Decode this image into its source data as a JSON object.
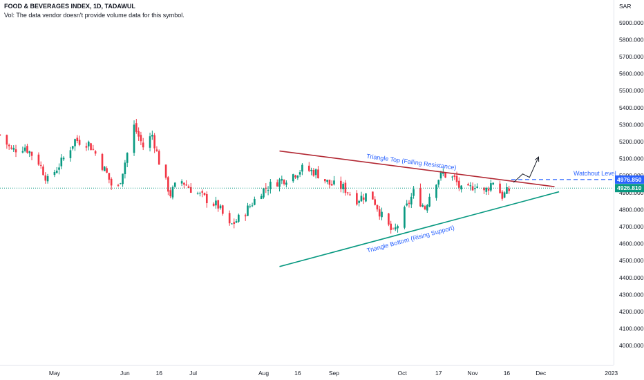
{
  "header": {
    "title": "FOOD & BEVERAGES INDEX, 1D, TADAWUL",
    "volume_note": "Vol: The data vendor doesn't provide volume data for this symbol."
  },
  "chart_data": {
    "type": "candlestick",
    "currency": "SAR",
    "ylim": [
      3940,
      5960
    ],
    "y_ticks": [
      4000,
      4100,
      4200,
      4300,
      4400,
      4500,
      4600,
      4700,
      4800,
      4900,
      5000,
      5100,
      5200,
      5300,
      5400,
      5500,
      5600,
      5700,
      5800,
      5900
    ],
    "y_tick_labels": [
      "4000.000",
      "4100.000",
      "4200.000",
      "4300.000",
      "4400.000",
      "4500.000",
      "4600.000",
      "4700.000",
      "4800.000",
      "4900.000",
      "5000.000",
      "5100.000",
      "5200.000",
      "5300.000",
      "5400.000",
      "5500.000",
      "5600.000",
      "5700.000",
      "5800.000",
      "5900.000"
    ],
    "x_range": [
      "2022-04-07",
      "2023-01-02"
    ],
    "x_ticks": [
      {
        "label": "May",
        "date": "2022-05-01"
      },
      {
        "label": "Jun",
        "date": "2022-06-01"
      },
      {
        "label": "16",
        "date": "2022-06-16"
      },
      {
        "label": "Jul",
        "date": "2022-07-01"
      },
      {
        "label": "Aug",
        "date": "2022-08-01"
      },
      {
        "label": "16",
        "date": "2022-08-16"
      },
      {
        "label": "Sep",
        "date": "2022-09-01"
      },
      {
        "label": "Oct",
        "date": "2022-10-01"
      },
      {
        "label": "17",
        "date": "2022-10-17"
      },
      {
        "label": "Nov",
        "date": "2022-11-01"
      },
      {
        "label": "16",
        "date": "2022-11-16"
      },
      {
        "label": "Dec",
        "date": "2022-12-01"
      },
      {
        "label": "2023",
        "date": "2023-01-01"
      }
    ],
    "close_path": [
      [
        "2022-04-07",
        5240
      ],
      [
        "2022-04-12",
        5150
      ],
      [
        "2022-04-18",
        5170
      ],
      [
        "2022-04-24",
        5080
      ],
      [
        "2022-04-28",
        4970
      ],
      [
        "2022-05-04",
        5080
      ],
      [
        "2022-05-10",
        5210
      ],
      [
        "2022-05-16",
        5190
      ],
      [
        "2022-05-20",
        5110
      ],
      [
        "2022-05-24",
        5010
      ],
      [
        "2022-05-28",
        4880
      ],
      [
        "2022-06-01",
        5080
      ],
      [
        "2022-06-05",
        5290
      ],
      [
        "2022-06-09",
        5170
      ],
      [
        "2022-06-13",
        5240
      ],
      [
        "2022-06-17",
        5030
      ],
      [
        "2022-06-21",
        4890
      ],
      [
        "2022-06-25",
        4980
      ],
      [
        "2022-07-01",
        4910
      ],
      [
        "2022-07-07",
        4860
      ],
      [
        "2022-07-12",
        4820
      ],
      [
        "2022-07-17",
        4700
      ],
      [
        "2022-07-23",
        4770
      ],
      [
        "2022-07-31",
        4910
      ],
      [
        "2022-08-06",
        4960
      ],
      [
        "2022-08-12",
        4990
      ],
      [
        "2022-08-18",
        5040
      ],
      [
        "2022-08-24",
        5020
      ],
      [
        "2022-08-30",
        4950
      ],
      [
        "2022-09-05",
        4930
      ],
      [
        "2022-09-11",
        4860
      ],
      [
        "2022-09-17",
        4900
      ],
      [
        "2022-09-22",
        4760
      ],
      [
        "2022-09-27",
        4660
      ],
      [
        "2022-10-01",
        4760
      ],
      [
        "2022-10-06",
        4900
      ],
      [
        "2022-10-11",
        4810
      ],
      [
        "2022-10-15",
        4960
      ],
      [
        "2022-10-19",
        5010
      ],
      [
        "2022-10-24",
        4980
      ],
      [
        "2022-10-28",
        4890
      ],
      [
        "2022-11-02",
        4950
      ],
      [
        "2022-11-06",
        4900
      ],
      [
        "2022-11-10",
        4970
      ],
      [
        "2022-11-14",
        4880
      ],
      [
        "2022-11-18",
        4926.81
      ]
    ],
    "trendlines": [
      {
        "label": "Triangle Top (Falling Resistance)",
        "from": [
          "2022-08-08",
          5145
        ],
        "to": [
          "2022-12-07",
          4935
        ],
        "color": "#b22833"
      },
      {
        "label": "Triangle Bottom (Rising Support)",
        "from": [
          "2022-08-08",
          4465
        ],
        "to": [
          "2022-12-09",
          4905
        ],
        "color": "#089981"
      }
    ],
    "watchout_level": {
      "label": "Watchout Level",
      "value": 4976.85,
      "value_label": "4976.850",
      "color": "#2962ff"
    },
    "last_price": {
      "value": 4926.81,
      "value_label": "4926.810",
      "color": "#089981"
    },
    "projection_arrow": [
      [
        "2022-11-19",
        4960
      ],
      [
        "2022-11-23",
        5010
      ],
      [
        "2022-11-26",
        4990
      ],
      [
        "2022-11-30",
        5110
      ]
    ],
    "colors": {
      "up": "#089981",
      "down": "#f23645"
    }
  }
}
